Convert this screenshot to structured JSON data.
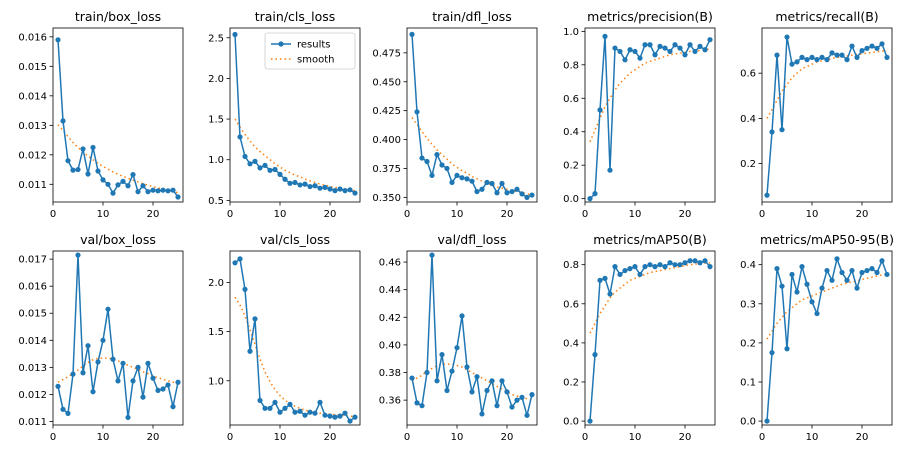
{
  "colors": {
    "results": "#1f77b4",
    "smooth": "#ff7f0e"
  },
  "legend": {
    "results": "results",
    "smooth": "smooth"
  },
  "chart_data": [
    {
      "type": "line",
      "title": "train/box_loss",
      "ylim": [
        0.0104,
        0.0163
      ],
      "yticks": [
        0.011,
        0.012,
        0.013,
        0.014,
        0.015,
        0.016
      ],
      "ytick_labels": [
        "0.011",
        "0.012",
        "0.013",
        "0.014",
        "0.015",
        "0.016"
      ],
      "xticks": [
        0,
        10,
        20
      ],
      "xlim": [
        0,
        26
      ],
      "x": [
        1,
        2,
        3,
        4,
        5,
        6,
        7,
        8,
        9,
        10,
        11,
        12,
        13,
        14,
        15,
        16,
        17,
        18,
        19,
        20,
        21,
        22,
        23,
        24,
        25
      ],
      "series": [
        {
          "name": "results",
          "values": [
            0.0159,
            0.01315,
            0.0118,
            0.01148,
            0.0115,
            0.0122,
            0.01135,
            0.01225,
            0.01145,
            0.01115,
            0.011,
            0.0107,
            0.01098,
            0.0111,
            0.01095,
            0.01133,
            0.01075,
            0.01095,
            0.01075,
            0.0108,
            0.01078,
            0.0108,
            0.01078,
            0.0108,
            0.01057
          ]
        },
        {
          "name": "smooth",
          "values": [
            0.01302,
            0.01283,
            0.01262,
            0.01242,
            0.01225,
            0.0121,
            0.01196,
            0.01183,
            0.01171,
            0.01161,
            0.01151,
            0.01142,
            0.01134,
            0.01127,
            0.0112,
            0.01114,
            0.01108,
            0.01102,
            0.01097,
            0.01092,
            0.01088,
            0.01083,
            0.01079,
            0.01075,
            0.01072
          ]
        }
      ]
    },
    {
      "type": "line",
      "title": "train/cls_loss",
      "ylim": [
        0.48,
        2.62
      ],
      "yticks": [
        0.5,
        1.0,
        1.5,
        2.0,
        2.5
      ],
      "ytick_labels": [
        "0.5",
        "1.0",
        "1.5",
        "2.0",
        "2.5"
      ],
      "xticks": [
        0,
        10,
        20
      ],
      "xlim": [
        0,
        26
      ],
      "legend": true,
      "x": [
        1,
        2,
        3,
        4,
        5,
        6,
        7,
        8,
        9,
        10,
        11,
        12,
        13,
        14,
        15,
        16,
        17,
        18,
        19,
        20,
        21,
        22,
        23,
        24,
        25
      ],
      "series": [
        {
          "name": "results",
          "values": [
            2.54,
            1.28,
            1.04,
            0.95,
            0.98,
            0.9,
            0.93,
            0.87,
            0.88,
            0.82,
            0.76,
            0.71,
            0.72,
            0.69,
            0.7,
            0.67,
            0.68,
            0.65,
            0.66,
            0.64,
            0.62,
            0.64,
            0.62,
            0.63,
            0.59
          ]
        },
        {
          "name": "smooth",
          "values": [
            1.5,
            1.4,
            1.31,
            1.23,
            1.16,
            1.1,
            1.05,
            1.0,
            0.95,
            0.91,
            0.87,
            0.84,
            0.81,
            0.79,
            0.76,
            0.74,
            0.72,
            0.7,
            0.69,
            0.67,
            0.66,
            0.65,
            0.64,
            0.63,
            0.62
          ]
        }
      ]
    },
    {
      "type": "line",
      "title": "train/dfl_loss",
      "ylim": [
        0.346,
        0.4965
      ],
      "yticks": [
        0.35,
        0.375,
        0.4,
        0.425,
        0.45,
        0.475
      ],
      "ytick_labels": [
        "0.350",
        "0.375",
        "0.400",
        "0.425",
        "0.450",
        "0.475"
      ],
      "xticks": [
        0,
        10,
        20
      ],
      "xlim": [
        0,
        26
      ],
      "x": [
        1,
        2,
        3,
        4,
        5,
        6,
        7,
        8,
        9,
        10,
        11,
        12,
        13,
        14,
        15,
        16,
        17,
        18,
        19,
        20,
        21,
        22,
        23,
        24,
        25
      ],
      "series": [
        {
          "name": "results",
          "values": [
            0.491,
            0.424,
            0.384,
            0.381,
            0.369,
            0.387,
            0.378,
            0.375,
            0.363,
            0.369,
            0.367,
            0.366,
            0.364,
            0.355,
            0.357,
            0.363,
            0.362,
            0.354,
            0.362,
            0.354,
            0.355,
            0.357,
            0.353,
            0.35,
            0.352
          ]
        },
        {
          "name": "smooth",
          "values": [
            0.419,
            0.413,
            0.407,
            0.401,
            0.396,
            0.391,
            0.387,
            0.383,
            0.379,
            0.376,
            0.373,
            0.371,
            0.368,
            0.366,
            0.364,
            0.362,
            0.361,
            0.359,
            0.358,
            0.357,
            0.356,
            0.355,
            0.354,
            0.353,
            0.352
          ]
        }
      ]
    },
    {
      "type": "line",
      "title": "metrics/precision(B)",
      "ylim": [
        -0.02,
        1.02
      ],
      "yticks": [
        0,
        0.2,
        0.4,
        0.6,
        0.8,
        1.0
      ],
      "ytick_labels": [
        "0.0",
        "0.2",
        "0.4",
        "0.6",
        "0.8",
        "1.0"
      ],
      "xticks": [
        0,
        10,
        20
      ],
      "xlim": [
        0,
        26
      ],
      "x": [
        1,
        2,
        3,
        4,
        5,
        6,
        7,
        8,
        9,
        10,
        11,
        12,
        13,
        14,
        15,
        16,
        17,
        18,
        19,
        20,
        21,
        22,
        23,
        24,
        25
      ],
      "series": [
        {
          "name": "results",
          "values": [
            0.0,
            0.03,
            0.53,
            0.97,
            0.17,
            0.9,
            0.88,
            0.83,
            0.89,
            0.88,
            0.84,
            0.92,
            0.92,
            0.86,
            0.91,
            0.9,
            0.88,
            0.92,
            0.9,
            0.86,
            0.92,
            0.88,
            0.91,
            0.89,
            0.95
          ]
        },
        {
          "name": "smooth",
          "values": [
            0.34,
            0.41,
            0.48,
            0.55,
            0.6,
            0.65,
            0.69,
            0.72,
            0.75,
            0.77,
            0.79,
            0.81,
            0.82,
            0.83,
            0.84,
            0.85,
            0.86,
            0.865,
            0.87,
            0.875,
            0.88,
            0.883,
            0.886,
            0.89,
            0.895
          ]
        }
      ]
    },
    {
      "type": "line",
      "title": "metrics/recall(B)",
      "ylim": [
        0.03,
        0.8
      ],
      "yticks": [
        0.2,
        0.4,
        0.6
      ],
      "ytick_labels": [
        "0.2",
        "0.4",
        "0.6"
      ],
      "xticks": [
        0,
        10,
        20
      ],
      "xlim": [
        0,
        26
      ],
      "x": [
        1,
        2,
        3,
        4,
        5,
        6,
        7,
        8,
        9,
        10,
        11,
        12,
        13,
        14,
        15,
        16,
        17,
        18,
        19,
        20,
        21,
        22,
        23,
        24,
        25
      ],
      "series": [
        {
          "name": "results",
          "values": [
            0.06,
            0.34,
            0.68,
            0.35,
            0.76,
            0.64,
            0.65,
            0.67,
            0.66,
            0.67,
            0.66,
            0.67,
            0.66,
            0.69,
            0.68,
            0.68,
            0.66,
            0.72,
            0.67,
            0.7,
            0.71,
            0.72,
            0.71,
            0.73,
            0.67
          ]
        },
        {
          "name": "smooth",
          "values": [
            0.4,
            0.44,
            0.48,
            0.52,
            0.55,
            0.58,
            0.6,
            0.62,
            0.63,
            0.64,
            0.65,
            0.655,
            0.66,
            0.665,
            0.67,
            0.673,
            0.676,
            0.68,
            0.683,
            0.686,
            0.689,
            0.692,
            0.695,
            0.698,
            0.7
          ]
        }
      ]
    },
    {
      "type": "line",
      "title": "val/box_loss",
      "ylim": [
        0.01087,
        0.0173
      ],
      "yticks": [
        0.011,
        0.012,
        0.013,
        0.014,
        0.015,
        0.016,
        0.017
      ],
      "ytick_labels": [
        "0.011",
        "0.012",
        "0.013",
        "0.014",
        "0.015",
        "0.016",
        "0.017"
      ],
      "xticks": [
        0,
        10,
        20
      ],
      "xlim": [
        0,
        26
      ],
      "x": [
        1,
        2,
        3,
        4,
        5,
        6,
        7,
        8,
        9,
        10,
        11,
        12,
        13,
        14,
        15,
        16,
        17,
        18,
        19,
        20,
        21,
        22,
        23,
        24,
        25
      ],
      "series": [
        {
          "name": "results",
          "values": [
            0.0123,
            0.01145,
            0.0113,
            0.01275,
            0.01715,
            0.0128,
            0.0138,
            0.0121,
            0.0132,
            0.014,
            0.01515,
            0.0133,
            0.0125,
            0.01315,
            0.01115,
            0.0125,
            0.013,
            0.0119,
            0.01315,
            0.0126,
            0.01215,
            0.0122,
            0.01235,
            0.01155,
            0.01245
          ]
        },
        {
          "name": "smooth",
          "values": [
            0.01245,
            0.01255,
            0.01265,
            0.01278,
            0.0129,
            0.01305,
            0.01318,
            0.01328,
            0.01333,
            0.01335,
            0.01334,
            0.0133,
            0.01324,
            0.01316,
            0.01308,
            0.013,
            0.01292,
            0.01284,
            0.01276,
            0.01268,
            0.01262,
            0.01256,
            0.0125,
            0.01245,
            0.01241
          ]
        }
      ]
    },
    {
      "type": "line",
      "title": "val/cls_loss",
      "ylim": [
        0.55,
        2.32
      ],
      "yticks": [
        1.0,
        1.5,
        2.0
      ],
      "ytick_labels": [
        "1.0",
        "1.5",
        "2.0"
      ],
      "xticks": [
        0,
        10,
        20
      ],
      "xlim": [
        0,
        26
      ],
      "x": [
        1,
        2,
        3,
        4,
        5,
        6,
        7,
        8,
        9,
        10,
        11,
        12,
        13,
        14,
        15,
        16,
        17,
        18,
        19,
        20,
        21,
        22,
        23,
        24,
        25
      ],
      "series": [
        {
          "name": "results",
          "values": [
            2.2,
            2.24,
            1.93,
            1.3,
            1.63,
            0.8,
            0.72,
            0.72,
            0.78,
            0.68,
            0.72,
            0.76,
            0.68,
            0.69,
            0.65,
            0.68,
            0.67,
            0.78,
            0.65,
            0.64,
            0.63,
            0.64,
            0.67,
            0.59,
            0.63
          ]
        },
        {
          "name": "smooth",
          "values": [
            1.85,
            1.77,
            1.66,
            1.52,
            1.37,
            1.22,
            1.09,
            0.99,
            0.91,
            0.85,
            0.8,
            0.77,
            0.74,
            0.72,
            0.7,
            0.69,
            0.68,
            0.67,
            0.665,
            0.66,
            0.655,
            0.65,
            0.645,
            0.64,
            0.635
          ]
        }
      ]
    },
    {
      "type": "line",
      "title": "val/dfl_loss",
      "ylim": [
        0.342,
        0.468
      ],
      "yticks": [
        0.36,
        0.38,
        0.4,
        0.42,
        0.44,
        0.46
      ],
      "ytick_labels": [
        "0.36",
        "0.38",
        "0.40",
        "0.42",
        "0.44",
        "0.46"
      ],
      "xticks": [
        0,
        10,
        20
      ],
      "xlim": [
        0,
        26
      ],
      "x": [
        1,
        2,
        3,
        4,
        5,
        6,
        7,
        8,
        9,
        10,
        11,
        12,
        13,
        14,
        15,
        16,
        17,
        18,
        19,
        20,
        21,
        22,
        23,
        24,
        25
      ],
      "series": [
        {
          "name": "results",
          "values": [
            0.376,
            0.358,
            0.356,
            0.38,
            0.465,
            0.374,
            0.393,
            0.367,
            0.381,
            0.398,
            0.421,
            0.384,
            0.366,
            0.377,
            0.35,
            0.367,
            0.374,
            0.356,
            0.374,
            0.366,
            0.355,
            0.36,
            0.362,
            0.349,
            0.364
          ]
        },
        {
          "name": "smooth",
          "values": [
            0.374,
            0.376,
            0.378,
            0.381,
            0.383,
            0.385,
            0.386,
            0.386,
            0.386,
            0.385,
            0.384,
            0.382,
            0.38,
            0.378,
            0.376,
            0.374,
            0.372,
            0.37,
            0.368,
            0.366,
            0.364,
            0.363,
            0.362,
            0.361,
            0.36
          ]
        }
      ]
    },
    {
      "type": "line",
      "title": "metrics/mAP50(B)",
      "ylim": [
        -0.02,
        0.87
      ],
      "yticks": [
        0,
        0.2,
        0.4,
        0.6,
        0.8
      ],
      "ytick_labels": [
        "0.0",
        "0.2",
        "0.4",
        "0.6",
        "0.8"
      ],
      "xticks": [
        0,
        10,
        20
      ],
      "xlim": [
        0,
        26
      ],
      "x": [
        1,
        2,
        3,
        4,
        5,
        6,
        7,
        8,
        9,
        10,
        11,
        12,
        13,
        14,
        15,
        16,
        17,
        18,
        19,
        20,
        21,
        22,
        23,
        24,
        25
      ],
      "series": [
        {
          "name": "results",
          "values": [
            0.0,
            0.34,
            0.72,
            0.73,
            0.65,
            0.79,
            0.75,
            0.77,
            0.78,
            0.79,
            0.75,
            0.79,
            0.8,
            0.79,
            0.8,
            0.79,
            0.81,
            0.8,
            0.8,
            0.81,
            0.82,
            0.82,
            0.81,
            0.82,
            0.79
          ]
        },
        {
          "name": "smooth",
          "values": [
            0.45,
            0.5,
            0.55,
            0.59,
            0.63,
            0.66,
            0.68,
            0.7,
            0.72,
            0.73,
            0.74,
            0.75,
            0.76,
            0.765,
            0.77,
            0.775,
            0.78,
            0.785,
            0.79,
            0.795,
            0.8,
            0.803,
            0.805,
            0.808,
            0.81
          ]
        }
      ]
    },
    {
      "type": "line",
      "title": "metrics/mAP50-95(B)",
      "ylim": [
        -0.01,
        0.435
      ],
      "yticks": [
        0,
        0.1,
        0.2,
        0.3,
        0.4
      ],
      "ytick_labels": [
        "0.0",
        "0.1",
        "0.2",
        "0.3",
        "0.4"
      ],
      "xticks": [
        0,
        10,
        20
      ],
      "xlim": [
        0,
        26
      ],
      "x": [
        1,
        2,
        3,
        4,
        5,
        6,
        7,
        8,
        9,
        10,
        11,
        12,
        13,
        14,
        15,
        16,
        17,
        18,
        19,
        20,
        21,
        22,
        23,
        24,
        25
      ],
      "series": [
        {
          "name": "results",
          "values": [
            0.0,
            0.175,
            0.39,
            0.345,
            0.185,
            0.375,
            0.33,
            0.395,
            0.35,
            0.305,
            0.275,
            0.34,
            0.385,
            0.36,
            0.415,
            0.38,
            0.36,
            0.385,
            0.34,
            0.38,
            0.385,
            0.39,
            0.38,
            0.41,
            0.375
          ]
        },
        {
          "name": "smooth",
          "values": [
            0.21,
            0.23,
            0.25,
            0.265,
            0.28,
            0.29,
            0.3,
            0.31,
            0.315,
            0.32,
            0.325,
            0.33,
            0.335,
            0.34,
            0.345,
            0.35,
            0.353,
            0.356,
            0.359,
            0.362,
            0.365,
            0.368,
            0.371,
            0.374,
            0.377
          ]
        }
      ]
    }
  ]
}
